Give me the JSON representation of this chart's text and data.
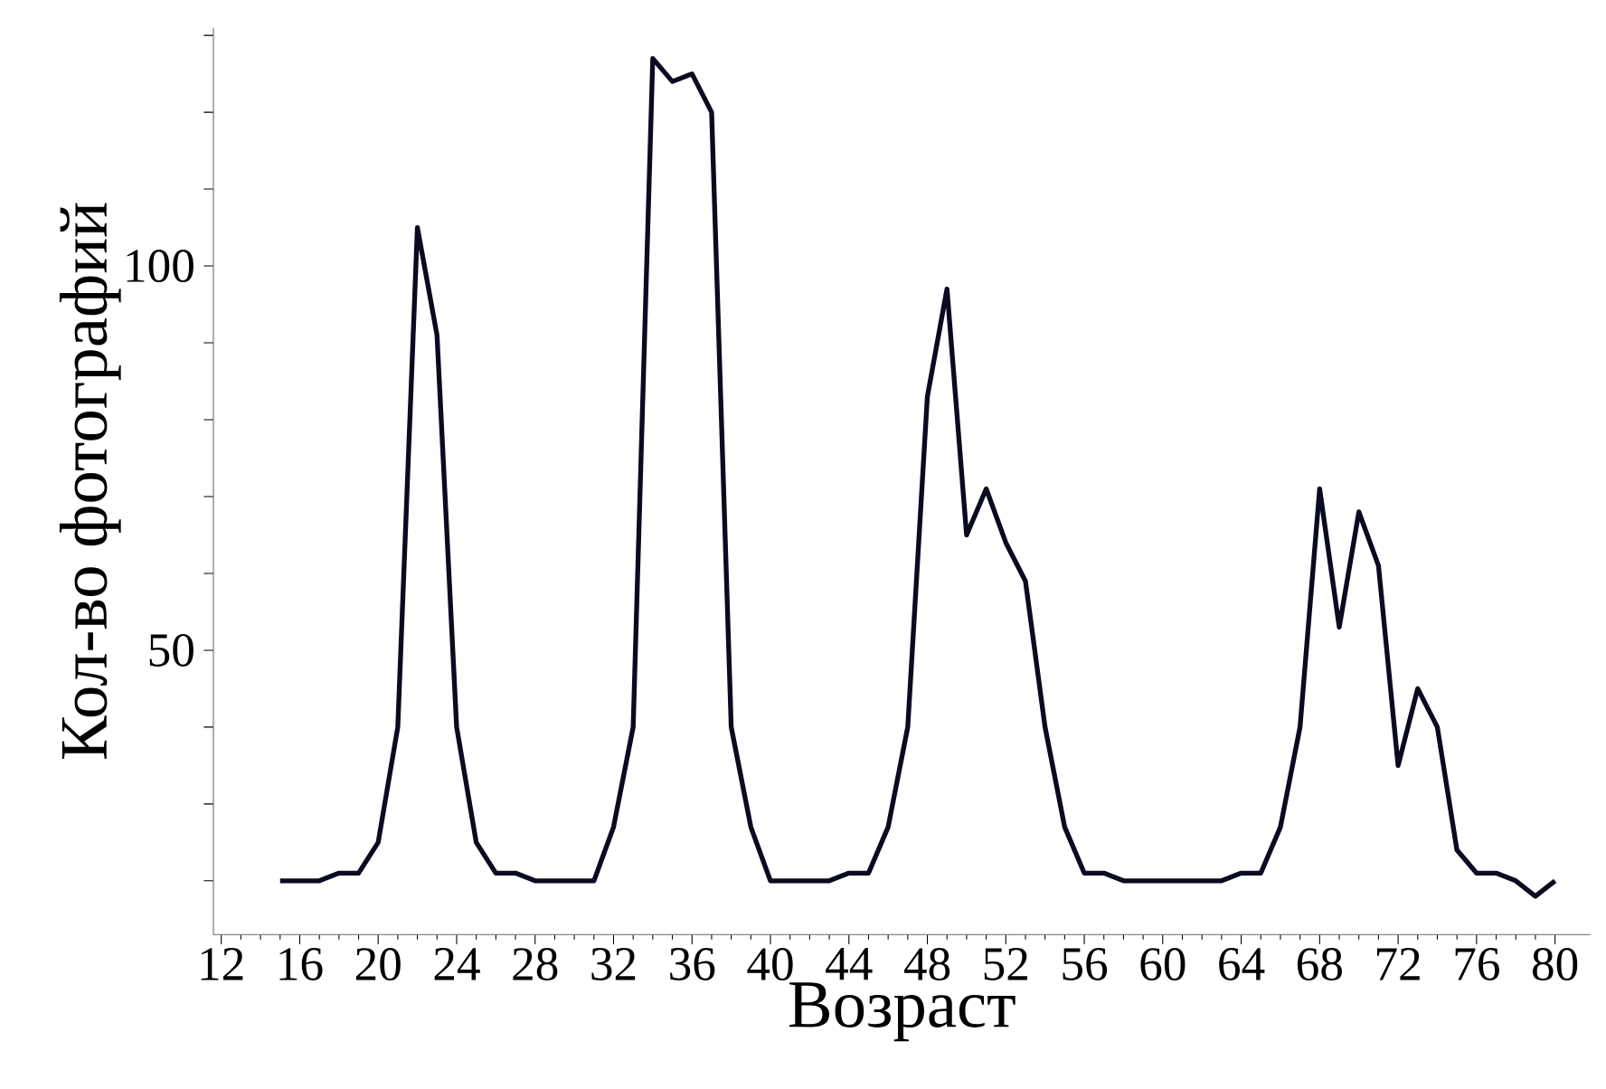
{
  "chart_data": {
    "type": "line",
    "xlabel": "Возраст",
    "ylabel": "Кол-во фотографий",
    "x": [
      15,
      16,
      17,
      18,
      19,
      20,
      21,
      22,
      23,
      24,
      25,
      26,
      27,
      28,
      29,
      30,
      31,
      32,
      33,
      34,
      35,
      36,
      37,
      38,
      39,
      40,
      41,
      42,
      43,
      44,
      45,
      46,
      47,
      48,
      49,
      50,
      51,
      52,
      53,
      54,
      55,
      56,
      57,
      58,
      59,
      60,
      61,
      62,
      63,
      64,
      65,
      66,
      67,
      68,
      69,
      70,
      71,
      72,
      73,
      74,
      75,
      76,
      77,
      78,
      79,
      80
    ],
    "series": [
      {
        "color": "#0a0a20",
        "values": [
          20,
          20,
          20,
          21,
          21,
          25,
          40,
          105,
          91,
          40,
          25,
          21,
          21,
          20,
          20,
          20,
          20,
          27,
          40,
          127,
          124,
          125,
          120,
          40,
          27,
          20,
          20,
          20,
          20,
          21,
          21,
          27,
          40,
          83,
          97,
          65,
          71,
          64,
          59,
          40,
          27,
          21,
          21,
          20,
          20,
          20,
          20,
          20,
          20,
          21,
          21,
          27,
          40,
          71,
          53,
          68,
          61,
          35,
          45,
          40,
          24,
          21,
          21,
          20,
          18,
          20
        ]
      }
    ],
    "xlim": [
      11.6,
      81.8
    ],
    "ylim": [
      13,
      131
    ],
    "xticks": [
      12,
      16,
      20,
      24,
      28,
      32,
      36,
      40,
      44,
      48,
      52,
      56,
      60,
      64,
      68,
      72,
      76,
      80
    ],
    "yticks": [
      {
        "value": 20,
        "label": null
      },
      {
        "value": 30,
        "label": null
      },
      {
        "value": 40,
        "label": null
      },
      50,
      {
        "value": 60,
        "label": null
      },
      {
        "value": 70,
        "label": null
      },
      {
        "value": 80,
        "label": null
      },
      {
        "value": 90,
        "label": null
      },
      100,
      {
        "value": 110,
        "label": null
      },
      {
        "value": 120,
        "label": null
      },
      {
        "value": 130,
        "label": null
      }
    ],
    "marker": "none",
    "line_style": "solid"
  }
}
